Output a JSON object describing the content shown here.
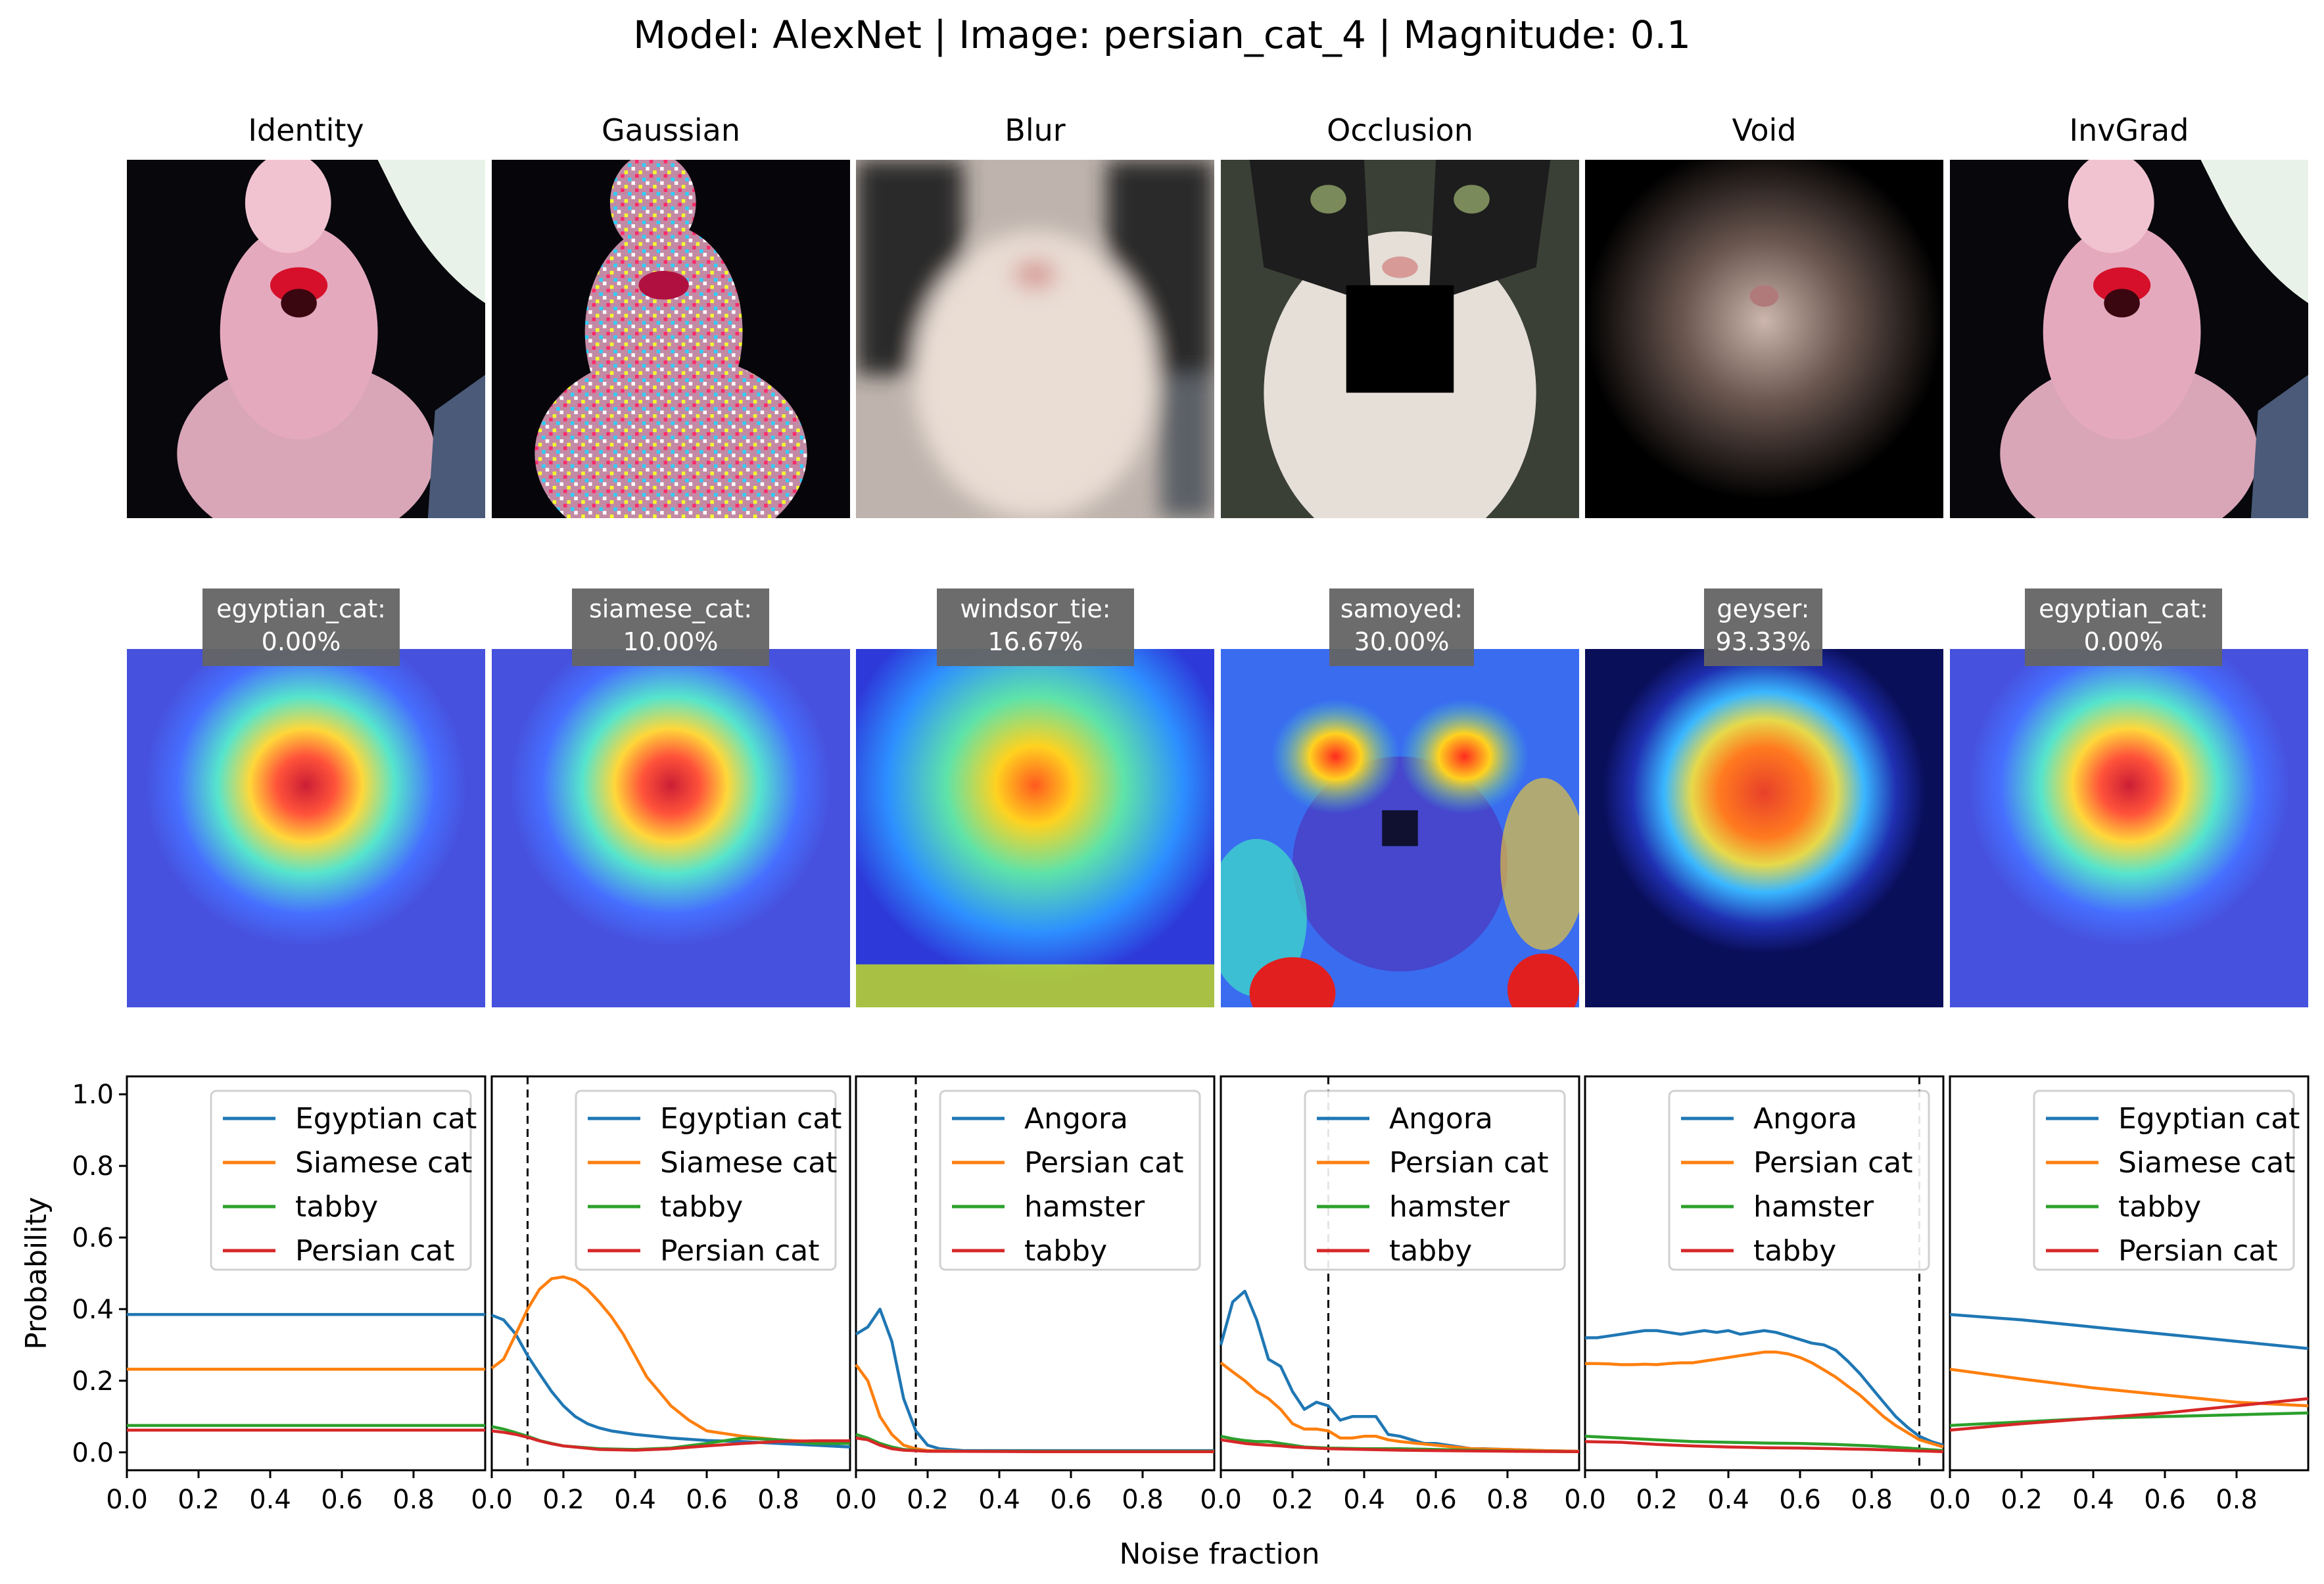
{
  "title": "Model: AlexNet | Image: persian_cat_4 | Magnitude: 0.1",
  "panels": [
    {
      "name": "Identity",
      "prediction_label": "egyptian_cat:",
      "prediction_value": "0.00%"
    },
    {
      "name": "Gaussian",
      "prediction_label": "siamese_cat:",
      "prediction_value": "10.00%"
    },
    {
      "name": "Blur",
      "prediction_label": "windsor_tie:",
      "prediction_value": "16.67%"
    },
    {
      "name": "Occlusion",
      "prediction_label": "samoyed:",
      "prediction_value": "30.00%"
    },
    {
      "name": "Void",
      "prediction_label": "geyser:",
      "prediction_value": "93.33%"
    },
    {
      "name": "InvGrad",
      "prediction_label": "egyptian_cat:",
      "prediction_value": "0.00%"
    }
  ],
  "colors": {
    "blue": "#1f77b4",
    "orange": "#ff7f0e",
    "green": "#2ca02c",
    "red": "#d62728"
  },
  "chart_data": {
    "type": "line",
    "xlabel": "Noise fraction",
    "ylabel": "Probability",
    "xlim": [
      0,
      1
    ],
    "ylim": [
      -0.05,
      1.05
    ],
    "x_ticks": [
      "0.0",
      "0.2",
      "0.4",
      "0.6",
      "0.8"
    ],
    "y_ticks": [
      "0.0",
      "0.2",
      "0.4",
      "0.6",
      "0.8",
      "1.0"
    ],
    "legend_position": "top-right",
    "panels": [
      {
        "name": "Identity",
        "threshold": null,
        "series": [
          {
            "name": "Egyptian cat",
            "color": "#1f77b4",
            "x": [
              0,
              1
            ],
            "y": [
              0.385,
              0.385
            ]
          },
          {
            "name": "Siamese cat",
            "color": "#ff7f0e",
            "x": [
              0,
              1
            ],
            "y": [
              0.232,
              0.232
            ]
          },
          {
            "name": "tabby",
            "color": "#2ca02c",
            "x": [
              0,
              1
            ],
            "y": [
              0.075,
              0.075
            ]
          },
          {
            "name": "Persian cat",
            "color": "#d62728",
            "x": [
              0,
              1
            ],
            "y": [
              0.062,
              0.062
            ]
          }
        ]
      },
      {
        "name": "Gaussian",
        "threshold": 0.1,
        "series": [
          {
            "name": "Egyptian cat",
            "color": "#1f77b4",
            "x": [
              0,
              0.033,
              0.067,
              0.1,
              0.133,
              0.167,
              0.2,
              0.233,
              0.267,
              0.3,
              0.333,
              0.4,
              0.5,
              0.6,
              0.7,
              0.8,
              0.9,
              1.0
            ],
            "y": [
              0.383,
              0.37,
              0.33,
              0.27,
              0.22,
              0.17,
              0.13,
              0.1,
              0.08,
              0.068,
              0.06,
              0.05,
              0.04,
              0.033,
              0.03,
              0.025,
              0.02,
              0.015
            ]
          },
          {
            "name": "Siamese cat",
            "color": "#ff7f0e",
            "x": [
              0,
              0.033,
              0.067,
              0.1,
              0.133,
              0.167,
              0.2,
              0.233,
              0.267,
              0.3,
              0.333,
              0.367,
              0.4,
              0.433,
              0.467,
              0.5,
              0.55,
              0.6,
              0.7,
              0.8,
              0.9,
              1.0
            ],
            "y": [
              0.235,
              0.26,
              0.33,
              0.4,
              0.455,
              0.485,
              0.49,
              0.48,
              0.455,
              0.42,
              0.38,
              0.33,
              0.27,
              0.21,
              0.17,
              0.13,
              0.09,
              0.06,
              0.045,
              0.035,
              0.03,
              0.03
            ]
          },
          {
            "name": "tabby",
            "color": "#2ca02c",
            "x": [
              0,
              0.033,
              0.067,
              0.1,
              0.133,
              0.167,
              0.2,
              0.3,
              0.4,
              0.5,
              0.6,
              0.7,
              0.8,
              0.9,
              1.0
            ],
            "y": [
              0.072,
              0.065,
              0.055,
              0.045,
              0.033,
              0.025,
              0.018,
              0.01,
              0.008,
              0.012,
              0.025,
              0.04,
              0.035,
              0.025,
              0.025
            ]
          },
          {
            "name": "Persian cat",
            "color": "#d62728",
            "x": [
              0,
              0.033,
              0.067,
              0.1,
              0.133,
              0.167,
              0.2,
              0.3,
              0.4,
              0.5,
              0.6,
              0.7,
              0.8,
              0.9,
              1.0
            ],
            "y": [
              0.06,
              0.056,
              0.05,
              0.042,
              0.032,
              0.024,
              0.018,
              0.008,
              0.006,
              0.01,
              0.018,
              0.025,
              0.03,
              0.032,
              0.032
            ]
          }
        ]
      },
      {
        "name": "Blur",
        "threshold": 0.167,
        "series": [
          {
            "name": "Angora",
            "color": "#1f77b4",
            "x": [
              0,
              0.033,
              0.067,
              0.1,
              0.133,
              0.167,
              0.2,
              0.233,
              0.3,
              0.4,
              0.6,
              0.8,
              1.0
            ],
            "y": [
              0.33,
              0.35,
              0.4,
              0.31,
              0.15,
              0.06,
              0.02,
              0.01,
              0.005,
              0.005,
              0.005,
              0.005,
              0.005
            ]
          },
          {
            "name": "Persian cat",
            "color": "#ff7f0e",
            "x": [
              0,
              0.033,
              0.067,
              0.1,
              0.133,
              0.167,
              0.2,
              0.3,
              0.6,
              1.0
            ],
            "y": [
              0.245,
              0.2,
              0.1,
              0.05,
              0.02,
              0.01,
              0.005,
              0.003,
              0.003,
              0.003
            ]
          },
          {
            "name": "hamster",
            "color": "#2ca02c",
            "x": [
              0,
              0.033,
              0.067,
              0.1,
              0.133,
              0.2,
              0.5,
              1.0
            ],
            "y": [
              0.05,
              0.04,
              0.025,
              0.015,
              0.008,
              0.003,
              0.003,
              0.003
            ]
          },
          {
            "name": "tabby",
            "color": "#d62728",
            "x": [
              0,
              0.033,
              0.067,
              0.1,
              0.133,
              0.2,
              0.5,
              1.0
            ],
            "y": [
              0.04,
              0.035,
              0.02,
              0.01,
              0.006,
              0.003,
              0.002,
              0.002
            ]
          }
        ]
      },
      {
        "name": "Occlusion",
        "threshold": 0.3,
        "series": [
          {
            "name": "Angora",
            "color": "#1f77b4",
            "x": [
              0,
              0.033,
              0.067,
              0.1,
              0.133,
              0.167,
              0.2,
              0.233,
              0.267,
              0.3,
              0.333,
              0.367,
              0.4,
              0.433,
              0.467,
              0.5,
              0.533,
              0.567,
              0.6,
              0.633,
              0.667,
              0.7,
              0.733,
              0.8,
              0.9,
              1.0
            ],
            "y": [
              0.3,
              0.42,
              0.45,
              0.37,
              0.26,
              0.24,
              0.17,
              0.12,
              0.14,
              0.13,
              0.09,
              0.1,
              0.1,
              0.1,
              0.05,
              0.045,
              0.035,
              0.025,
              0.025,
              0.02,
              0.015,
              0.01,
              0.01,
              0.008,
              0.005,
              0.003
            ]
          },
          {
            "name": "Persian cat",
            "color": "#ff7f0e",
            "x": [
              0,
              0.033,
              0.067,
              0.1,
              0.133,
              0.167,
              0.2,
              0.233,
              0.267,
              0.3,
              0.333,
              0.367,
              0.4,
              0.433,
              0.467,
              0.5,
              0.55,
              0.6,
              0.65,
              0.7,
              0.8,
              0.9,
              1.0
            ],
            "y": [
              0.25,
              0.225,
              0.2,
              0.17,
              0.15,
              0.12,
              0.08,
              0.065,
              0.065,
              0.06,
              0.04,
              0.04,
              0.045,
              0.045,
              0.035,
              0.03,
              0.025,
              0.02,
              0.015,
              0.01,
              0.008,
              0.005,
              0.003
            ]
          },
          {
            "name": "hamster",
            "color": "#2ca02c",
            "x": [
              0,
              0.033,
              0.067,
              0.1,
              0.133,
              0.167,
              0.2,
              0.233,
              0.3,
              0.4,
              0.5,
              0.6,
              0.7,
              0.8,
              1.0
            ],
            "y": [
              0.045,
              0.038,
              0.033,
              0.03,
              0.03,
              0.025,
              0.02,
              0.015,
              0.012,
              0.01,
              0.01,
              0.008,
              0.006,
              0.004,
              0.002
            ]
          },
          {
            "name": "tabby",
            "color": "#d62728",
            "x": [
              0,
              0.033,
              0.067,
              0.1,
              0.133,
              0.167,
              0.2,
              0.3,
              0.4,
              0.5,
              0.6,
              0.7,
              0.8,
              1.0
            ],
            "y": [
              0.035,
              0.03,
              0.025,
              0.022,
              0.02,
              0.018,
              0.015,
              0.01,
              0.008,
              0.006,
              0.005,
              0.004,
              0.003,
              0.002
            ]
          }
        ]
      },
      {
        "name": "Void",
        "threshold": 0.933,
        "series": [
          {
            "name": "Angora",
            "color": "#1f77b4",
            "x": [
              0,
              0.033,
              0.067,
              0.1,
              0.133,
              0.167,
              0.2,
              0.233,
              0.267,
              0.3,
              0.333,
              0.367,
              0.4,
              0.433,
              0.467,
              0.5,
              0.533,
              0.567,
              0.6,
              0.633,
              0.667,
              0.7,
              0.733,
              0.767,
              0.8,
              0.833,
              0.867,
              0.9,
              0.933,
              0.967,
              1.0
            ],
            "y": [
              0.32,
              0.32,
              0.325,
              0.33,
              0.335,
              0.34,
              0.34,
              0.335,
              0.33,
              0.335,
              0.34,
              0.335,
              0.34,
              0.33,
              0.335,
              0.34,
              0.335,
              0.325,
              0.315,
              0.305,
              0.3,
              0.285,
              0.255,
              0.22,
              0.18,
              0.14,
              0.1,
              0.07,
              0.045,
              0.03,
              0.02
            ]
          },
          {
            "name": "Persian cat",
            "color": "#ff7f0e",
            "x": [
              0,
              0.033,
              0.067,
              0.1,
              0.133,
              0.167,
              0.2,
              0.233,
              0.267,
              0.3,
              0.333,
              0.367,
              0.4,
              0.433,
              0.467,
              0.5,
              0.533,
              0.567,
              0.6,
              0.633,
              0.667,
              0.7,
              0.733,
              0.767,
              0.8,
              0.833,
              0.867,
              0.9,
              0.933,
              0.967,
              1.0
            ],
            "y": [
              0.248,
              0.248,
              0.247,
              0.245,
              0.245,
              0.246,
              0.245,
              0.248,
              0.25,
              0.25,
              0.255,
              0.26,
              0.265,
              0.27,
              0.275,
              0.28,
              0.28,
              0.275,
              0.265,
              0.25,
              0.23,
              0.21,
              0.185,
              0.16,
              0.13,
              0.1,
              0.075,
              0.055,
              0.035,
              0.025,
              0.015
            ]
          },
          {
            "name": "hamster",
            "color": "#2ca02c",
            "x": [
              0,
              0.1,
              0.2,
              0.3,
              0.4,
              0.5,
              0.6,
              0.7,
              0.8,
              0.9,
              1.0
            ],
            "y": [
              0.045,
              0.04,
              0.035,
              0.03,
              0.028,
              0.026,
              0.025,
              0.022,
              0.018,
              0.012,
              0.005
            ]
          },
          {
            "name": "tabby",
            "color": "#d62728",
            "x": [
              0,
              0.1,
              0.2,
              0.3,
              0.4,
              0.5,
              0.6,
              0.7,
              0.8,
              0.9,
              1.0
            ],
            "y": [
              0.03,
              0.028,
              0.022,
              0.018,
              0.015,
              0.013,
              0.012,
              0.01,
              0.008,
              0.005,
              0.002
            ]
          }
        ]
      },
      {
        "name": "InvGrad",
        "threshold": null,
        "series": [
          {
            "name": "Egyptian cat",
            "color": "#1f77b4",
            "x": [
              0,
              0.2,
              0.4,
              0.6,
              0.8,
              1.0
            ],
            "y": [
              0.385,
              0.37,
              0.35,
              0.33,
              0.31,
              0.29
            ]
          },
          {
            "name": "Siamese cat",
            "color": "#ff7f0e",
            "x": [
              0,
              0.2,
              0.4,
              0.6,
              0.8,
              1.0
            ],
            "y": [
              0.232,
              0.205,
              0.18,
              0.16,
              0.14,
              0.13
            ]
          },
          {
            "name": "tabby",
            "color": "#2ca02c",
            "x": [
              0,
              0.2,
              0.4,
              0.6,
              0.8,
              1.0
            ],
            "y": [
              0.075,
              0.085,
              0.095,
              0.1,
              0.105,
              0.11
            ]
          },
          {
            "name": "Persian cat",
            "color": "#d62728",
            "x": [
              0,
              0.2,
              0.4,
              0.6,
              0.8,
              1.0
            ],
            "y": [
              0.062,
              0.08,
              0.095,
              0.11,
              0.13,
              0.15
            ]
          }
        ]
      }
    ]
  }
}
